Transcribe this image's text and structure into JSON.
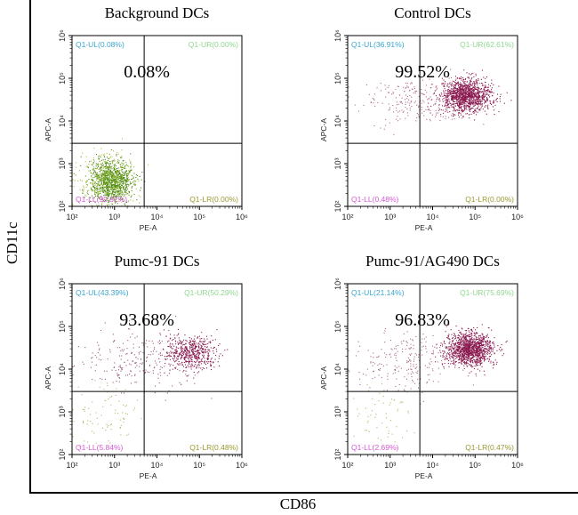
{
  "figure": {
    "y_label": "CD11c",
    "x_label": "CD86"
  },
  "chart_data": [
    {
      "type": "scatter",
      "title": "Background DCs",
      "highlight": "0.08%",
      "xlabel": "PE-A",
      "ylabel": "APC-A",
      "xscale": "log",
      "yscale": "log",
      "xlim": [
        100,
        1000000
      ],
      "ylim": [
        100,
        1000000
      ],
      "x_ticks": [
        "10²",
        "10³",
        "10⁴",
        "10⁵",
        "10⁶"
      ],
      "y_ticks": [
        "10²",
        "10³",
        "10⁴",
        "10⁵",
        "10⁶"
      ],
      "quadrant_gate": {
        "x": 5000,
        "y": 3000
      },
      "quadrants": {
        "UL": "Q1-UL(0.08%)",
        "UR": "Q1-UR(0.00%)",
        "LL": "Q1-LL(99.92%)",
        "LR": "Q1-LR(0.00%)"
      },
      "populations": [
        {
          "center": [
            800,
            400
          ],
          "spread_decades": [
            0.25,
            0.25
          ],
          "count": 1000,
          "color": "#4e8a12"
        },
        {
          "center": [
            700,
            450
          ],
          "spread_decades": [
            0.35,
            0.3
          ],
          "count": 300,
          "color": "#a9c244"
        }
      ]
    },
    {
      "type": "scatter",
      "title": "Control DCs",
      "highlight": "99.52%",
      "xlabel": "PE-A",
      "ylabel": "APC-A",
      "xscale": "log",
      "yscale": "log",
      "xlim": [
        100,
        1000000
      ],
      "ylim": [
        100,
        1000000
      ],
      "x_ticks": [
        "10²",
        "10³",
        "10⁴",
        "10⁵",
        "10⁶"
      ],
      "y_ticks": [
        "10²",
        "10³",
        "10⁴",
        "10⁵",
        "10⁶"
      ],
      "quadrant_gate": {
        "x": 5000,
        "y": 3000
      },
      "quadrants": {
        "UL": "Q1-UL(36.91%)",
        "UR": "Q1-UR(62.61%)",
        "LL": "Q1-LL(0.48%)",
        "LR": "Q1-LR(0.00%)"
      },
      "populations": [
        {
          "center": [
            60000,
            40000
          ],
          "spread_decades": [
            0.3,
            0.18
          ],
          "count": 1300,
          "color": "#8a1a50"
        },
        {
          "center": [
            4000,
            30000
          ],
          "spread_decades": [
            0.6,
            0.28
          ],
          "count": 220,
          "color": "#b36a8e"
        }
      ]
    },
    {
      "type": "scatter",
      "title": "Pumc-91 DCs",
      "highlight": "93.68%",
      "xlabel": "PE-A",
      "ylabel": "APC-A",
      "xscale": "log",
      "yscale": "log",
      "xlim": [
        100,
        1000000
      ],
      "ylim": [
        100,
        1000000
      ],
      "x_ticks": [
        "10²",
        "10³",
        "10⁴",
        "10⁵",
        "10⁶"
      ],
      "y_ticks": [
        "10²",
        "10³",
        "10⁴",
        "10⁵",
        "10⁶"
      ],
      "quadrant_gate": {
        "x": 5000,
        "y": 3000
      },
      "quadrants": {
        "UL": "Q1-UL(43.39%)",
        "UR": "Q1-UR(50.29%)",
        "LL": "Q1-LL(5.84%)",
        "LR": "Q1-LR(0.48%)"
      },
      "populations": [
        {
          "center": [
            60000,
            25000
          ],
          "spread_decades": [
            0.3,
            0.2
          ],
          "count": 550,
          "color": "#8a1a50"
        },
        {
          "center": [
            3000,
            15000
          ],
          "spread_decades": [
            0.6,
            0.35
          ],
          "count": 220,
          "color": "#9a5a80"
        },
        {
          "center": [
            500,
            800
          ],
          "spread_decades": [
            0.4,
            0.35
          ],
          "count": 80,
          "color": "#b5b56a"
        }
      ]
    },
    {
      "type": "scatter",
      "title": "Pumc-91/AG490 DCs",
      "highlight": "96.83%",
      "xlabel": "PE-A",
      "ylabel": "APC-A",
      "xscale": "log",
      "yscale": "log",
      "xlim": [
        100,
        1000000
      ],
      "ylim": [
        100,
        1000000
      ],
      "x_ticks": [
        "10²",
        "10³",
        "10⁴",
        "10⁵",
        "10⁶"
      ],
      "y_ticks": [
        "10²",
        "10³",
        "10⁴",
        "10⁵",
        "10⁶"
      ],
      "quadrant_gate": {
        "x": 5000,
        "y": 3000
      },
      "quadrants": {
        "UL": "Q1-UL(21.14%)",
        "UR": "Q1-UR(75.69%)",
        "LL": "Q1-LL(2.69%)",
        "LR": "Q1-LR(0.47%)"
      },
      "populations": [
        {
          "center": [
            70000,
            30000
          ],
          "spread_decades": [
            0.28,
            0.2
          ],
          "count": 1300,
          "color": "#8a1a50"
        },
        {
          "center": [
            3000,
            15000
          ],
          "spread_decades": [
            0.6,
            0.35
          ],
          "count": 220,
          "color": "#a86a8a"
        },
        {
          "center": [
            600,
            900
          ],
          "spread_decades": [
            0.4,
            0.35
          ],
          "count": 60,
          "color": "#b5b56a"
        }
      ]
    }
  ]
}
